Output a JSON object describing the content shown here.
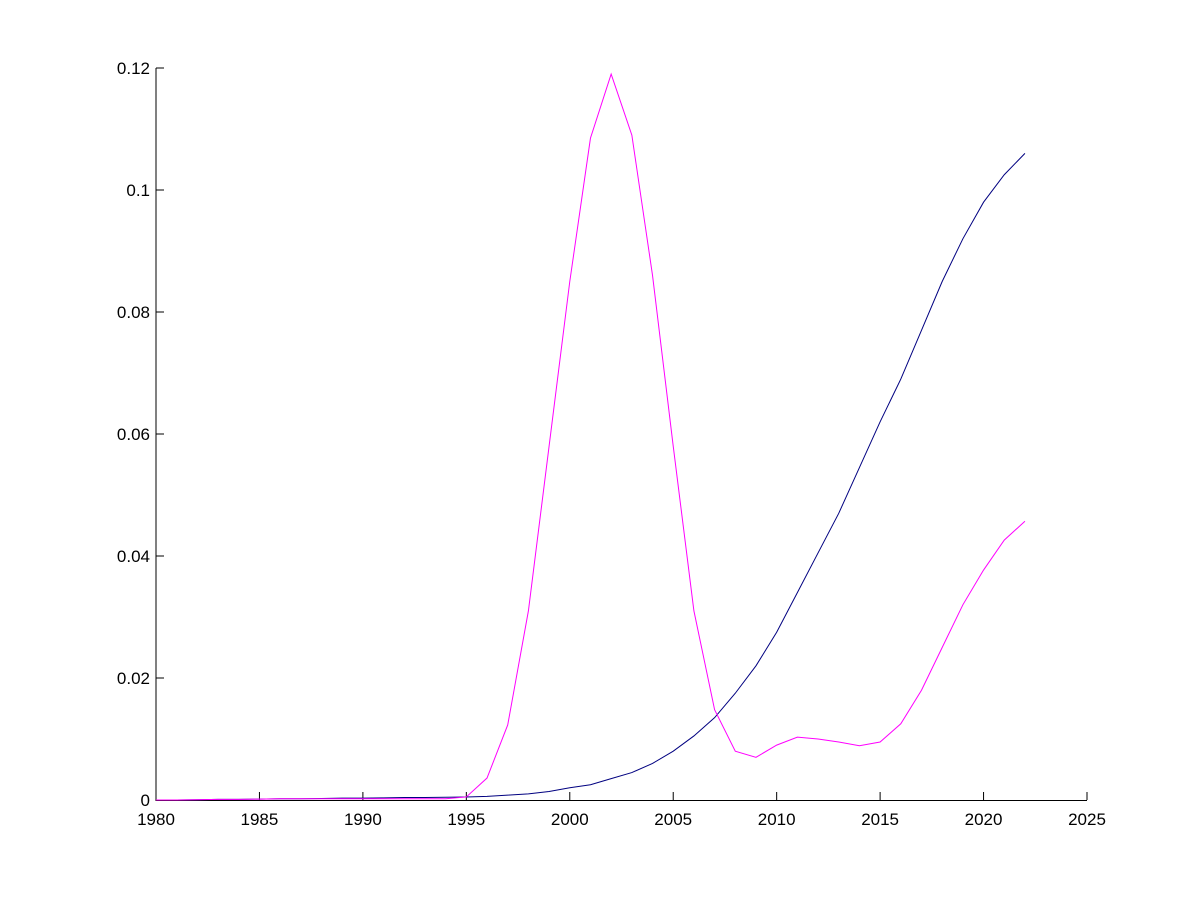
{
  "chart_data": {
    "type": "line",
    "x": [
      1980,
      1981,
      1982,
      1983,
      1984,
      1985,
      1986,
      1987,
      1988,
      1989,
      1990,
      1991,
      1992,
      1993,
      1994,
      1995,
      1996,
      1997,
      1998,
      1999,
      2000,
      2001,
      2002,
      2003,
      2004,
      2005,
      2006,
      2007,
      2008,
      2009,
      2010,
      2011,
      2012,
      2013,
      2014,
      2015,
      2016,
      2017,
      2018,
      2019,
      2020,
      2021,
      2022
    ],
    "series": [
      {
        "color": "#000080",
        "values": [
          0,
          0,
          5e-05,
          0.0001,
          0.0001,
          0.00015,
          0.0002,
          0.0002,
          0.00025,
          0.0003,
          0.0003,
          0.00035,
          0.0004,
          0.0004,
          0.00045,
          0.0005,
          0.0006,
          0.0008,
          0.001,
          0.0014,
          0.002,
          0.0025,
          0.0035,
          0.0045,
          0.006,
          0.008,
          0.0105,
          0.0135,
          0.0175,
          0.022,
          0.0275,
          0.034,
          0.0405,
          0.047,
          0.0545,
          0.062,
          0.069,
          0.077,
          0.085,
          0.092,
          0.098,
          0.1025,
          0.106
        ]
      },
      {
        "color": "#ff00ff",
        "values": [
          0,
          0,
          5e-05,
          0.0001,
          0.0001,
          0.00015,
          0.0002,
          0.0002,
          0.0002,
          0.0002,
          0.0002,
          0.0002,
          0.0002,
          0.0002,
          0.0002,
          0.0005,
          0.0036,
          0.0123,
          0.031,
          0.058,
          0.085,
          0.1085,
          0.119,
          0.109,
          0.086,
          0.058,
          0.031,
          0.0148,
          0.008,
          0.007,
          0.009,
          0.0103,
          0.01,
          0.0095,
          0.0089,
          0.0095,
          0.0125,
          0.018,
          0.025,
          0.032,
          0.0377,
          0.0426,
          0.0457
        ]
      }
    ],
    "xlim": [
      1980,
      2025
    ],
    "xticks": [
      1980,
      1985,
      1990,
      1995,
      2000,
      2005,
      2010,
      2015,
      2020,
      2025
    ],
    "ylim": [
      0,
      0.12
    ],
    "yticks": [
      0,
      0.02,
      0.04,
      0.06,
      0.08,
      0.1,
      0.12
    ]
  }
}
